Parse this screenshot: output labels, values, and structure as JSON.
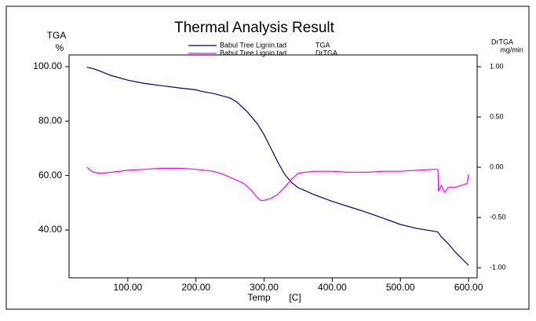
{
  "chart_data": {
    "type": "line",
    "title": "Thermal Analysis Result",
    "y_label": [
      "TGA",
      "%"
    ],
    "y2_label": [
      "DrTGA",
      "mg/min"
    ],
    "x_label": [
      "Temp",
      "[C]"
    ],
    "xlim": [
      13.8,
      612.6
    ],
    "ylim": [
      22.4,
      104.3
    ],
    "y2lim": [
      -1.1,
      1.117
    ],
    "xticks": [
      {
        "value": 100,
        "label": "100.00"
      },
      {
        "value": 200,
        "label": "200.00"
      },
      {
        "value": 300,
        "label": "300.00"
      },
      {
        "value": 400,
        "label": "400.00"
      },
      {
        "value": 500,
        "label": "500.00"
      },
      {
        "value": 600,
        "label": "600.00"
      }
    ],
    "yticks": [
      {
        "value": 40,
        "label": "40.00"
      },
      {
        "value": 60,
        "label": "60.00"
      },
      {
        "value": 80,
        "label": "80.00"
      },
      {
        "value": 100,
        "label": "100.00"
      }
    ],
    "y2ticks": [
      {
        "value": -1,
        "label": "-1.00"
      },
      {
        "value": -0.5,
        "label": "-0.50"
      },
      {
        "value": 0,
        "label": "0.00"
      },
      {
        "value": 0.5,
        "label": "0.50"
      },
      {
        "value": 1,
        "label": "1.00"
      }
    ],
    "series": [
      {
        "name": "Babul Tree Lignin.tad",
        "label": "TGA",
        "color": "#000080",
        "x": [
          40,
          50,
          60,
          75,
          100,
          125,
          150,
          175,
          200,
          210,
          225,
          250,
          260,
          275,
          290,
          300,
          310,
          320,
          330,
          340,
          350,
          375,
          400,
          425,
          450,
          475,
          500,
          525,
          550,
          555,
          560,
          570,
          580,
          590,
          600
        ],
        "values": [
          99.8,
          99.2,
          98.3,
          96.8,
          95,
          93.8,
          93,
          92.2,
          91.5,
          90.8,
          90.2,
          88.5,
          87,
          83.5,
          79,
          75,
          70,
          65,
          60.5,
          57.5,
          55.5,
          52.8,
          50.5,
          48.5,
          46.5,
          44.3,
          42,
          40.5,
          39.5,
          39.2,
          37.5,
          35,
          32,
          29.5,
          27
        ]
      },
      {
        "name": "Babul Tree Lignin.tad",
        "label": "DrTGA",
        "color": "#ff00ff",
        "axis": "y2",
        "x": [
          40,
          45,
          50,
          60,
          75,
          100,
          125,
          150,
          175,
          200,
          225,
          240,
          250,
          260,
          270,
          280,
          290,
          295,
          300,
          310,
          320,
          330,
          340,
          350,
          360,
          375,
          400,
          425,
          450,
          475,
          500,
          525,
          550,
          555,
          556,
          560,
          565,
          570,
          580,
          590,
          598,
          600
        ],
        "values": [
          0.0,
          -0.03,
          -0.05,
          -0.06,
          -0.05,
          -0.03,
          -0.02,
          -0.01,
          -0.01,
          -0.02,
          -0.04,
          -0.07,
          -0.1,
          -0.13,
          -0.16,
          -0.22,
          -0.3,
          -0.33,
          -0.33,
          -0.31,
          -0.27,
          -0.2,
          -0.12,
          -0.06,
          -0.05,
          -0.04,
          -0.04,
          -0.05,
          -0.05,
          -0.04,
          -0.04,
          -0.03,
          -0.02,
          -0.02,
          -0.24,
          -0.18,
          -0.25,
          -0.2,
          -0.2,
          -0.18,
          -0.16,
          -0.07
        ]
      }
    ]
  }
}
